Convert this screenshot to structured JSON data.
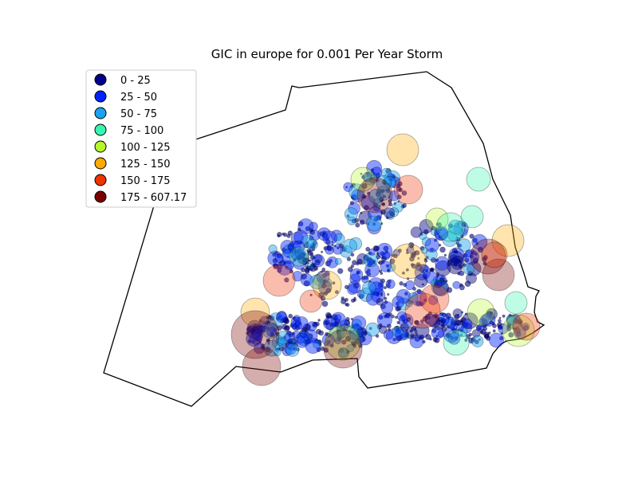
{
  "title": "GIC in europe for 0.001 Per Year Storm",
  "legend": [
    {
      "label": "0 - 25",
      "color": "#00008b"
    },
    {
      "label": "25 - 50",
      "color": "#0022ff"
    },
    {
      "label": "50 - 75",
      "color": "#18a2ef"
    },
    {
      "label": "75 - 100",
      "color": "#36f7b2"
    },
    {
      "label": "100 - 125",
      "color": "#b6f62a"
    },
    {
      "label": "125 - 150",
      "color": "#ffaa00"
    },
    {
      "label": "150 - 175",
      "color": "#ee3300"
    },
    {
      "label": "175 - 607.17",
      "color": "#7a0000"
    }
  ]
}
